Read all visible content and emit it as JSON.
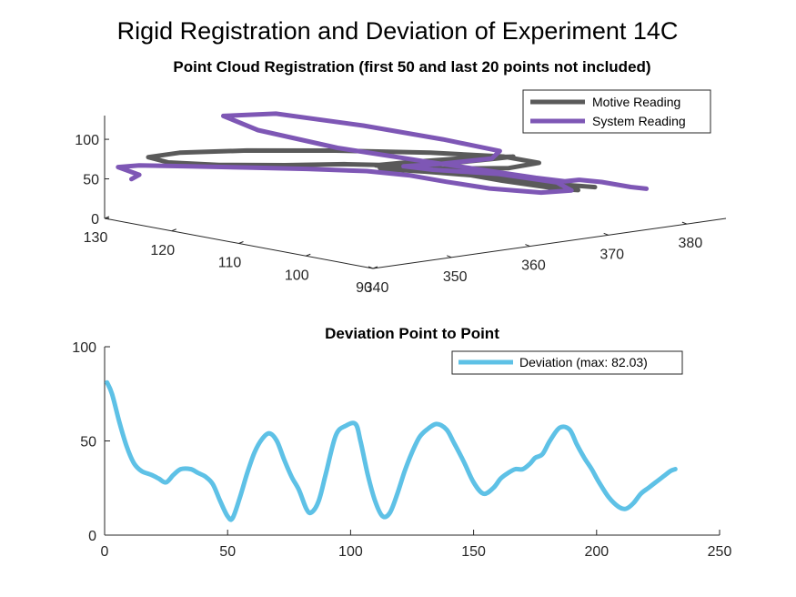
{
  "figure": {
    "title": "Rigid Registration and Deviation of Experiment 14C"
  },
  "colors": {
    "motive": "#5a5a5a",
    "system": "#7e57b5",
    "deviation": "#5ec1e6",
    "axis": "#262626"
  },
  "chart_data": [
    {
      "type": "line",
      "projection": "3d",
      "title": "Point Cloud Registration (first 50 and last 20 points not included)",
      "legend": [
        "Motive Reading",
        "System Reading"
      ],
      "legend_position": "top-right",
      "axes": {
        "x": {
          "lim": [
            340,
            385
          ],
          "ticks": [
            340,
            350,
            360,
            370,
            380
          ],
          "tick_labels": [
            "340",
            "350",
            "360",
            "370",
            "380"
          ]
        },
        "y": {
          "lim": [
            90,
            130
          ],
          "ticks": [
            90,
            100,
            110,
            120,
            130
          ],
          "tick_labels": [
            "90",
            "100",
            "110",
            "120",
            "130"
          ]
        },
        "z": {
          "lim": [
            0,
            130
          ],
          "ticks": [
            0,
            50,
            100
          ],
          "tick_labels": [
            "0",
            "50",
            "100"
          ]
        }
      },
      "series": [
        {
          "name": "Motive Reading",
          "color": "#5a5a5a",
          "points": [
            [
              373,
              98,
              40
            ],
            [
              369,
              96,
              50
            ],
            [
              365,
              100,
              60
            ],
            [
              363,
              104,
              66
            ],
            [
              360,
              109,
              72
            ],
            [
              356,
              113,
              73
            ],
            [
              351,
              116,
              74
            ],
            [
              346,
              120,
              75
            ],
            [
              343,
              124,
              76
            ],
            [
              343,
              127,
              78
            ],
            [
              347,
              127,
              78
            ],
            [
              353,
              124,
              77
            ],
            [
              360,
              119,
              75
            ],
            [
              367,
              113,
              72
            ],
            [
              372,
              108,
              68
            ],
            [
              374,
              105,
              62
            ],
            [
              371,
              106,
              58
            ],
            [
              366,
              110,
              58
            ],
            [
              362,
              113,
              60
            ],
            [
              360,
              113,
              66
            ],
            [
              362,
              110,
              72
            ],
            [
              366,
              106,
              78
            ],
            [
              369,
              103,
              80
            ],
            [
              367,
              104,
              78
            ],
            [
              362,
              107,
              73
            ],
            [
              358,
              110,
              70
            ],
            [
              359,
              111,
              66
            ],
            [
              363,
              109,
              60
            ],
            [
              367,
              106,
              54
            ],
            [
              371,
              102,
              46
            ],
            [
              376,
              99,
              38
            ]
          ]
        },
        {
          "name": "System Reading",
          "color": "#7e57b5",
          "points": [
            [
              380,
              96,
              35
            ],
            [
              378,
              96,
              40
            ],
            [
              376,
              98,
              46
            ],
            [
              374,
              99,
              50
            ],
            [
              373,
              100,
              48
            ],
            [
              371,
              102,
              52
            ],
            [
              368,
              104,
              60
            ],
            [
              362,
              108,
              76
            ],
            [
              356,
              114,
              92
            ],
            [
              351,
              120,
              112
            ],
            [
              350,
              124,
              125
            ],
            [
              355,
              122,
              124
            ],
            [
              361,
              116,
              110
            ],
            [
              366,
              110,
              95
            ],
            [
              369,
              105,
              84
            ],
            [
              368,
              105,
              76
            ],
            [
              364,
              108,
              70
            ],
            [
              361,
              110,
              68
            ],
            [
              363,
              108,
              64
            ],
            [
              368,
              104,
              58
            ],
            [
              372,
              100,
              48
            ],
            [
              373,
              99,
              38
            ],
            [
              370,
              100,
              38
            ],
            [
              366,
              103,
              44
            ],
            [
              363,
              106,
              52
            ],
            [
              361,
              109,
              58
            ],
            [
              358,
              112,
              63
            ],
            [
              353,
              115,
              68
            ],
            [
              348,
              118,
              72
            ],
            [
              344,
              122,
              73
            ],
            [
              341,
              126,
              72
            ],
            [
              340,
              128,
              68
            ],
            [
              341,
              126,
              60
            ],
            [
              340,
              126,
              56
            ]
          ]
        }
      ]
    },
    {
      "type": "line",
      "title": "Deviation Point to Point",
      "legend": [
        "Deviation (max: 82.03)"
      ],
      "legend_position": "top-right",
      "xlim": [
        0,
        250
      ],
      "ylim": [
        0,
        100
      ],
      "x_ticks": [
        "0",
        "50",
        "100",
        "150",
        "200",
        "250"
      ],
      "y_ticks": [
        "0",
        "50",
        "100"
      ],
      "series": [
        {
          "name": "Deviation (max: 82.03)",
          "color": "#5ec1e6",
          "x": [
            1,
            3,
            6,
            9,
            12,
            15,
            19,
            22,
            25,
            28,
            31,
            35,
            38,
            41,
            44,
            47,
            50,
            52,
            55,
            58,
            61,
            64,
            67,
            70,
            73,
            76,
            79,
            82,
            84,
            87,
            90,
            94,
            98,
            102,
            104,
            107,
            110,
            113,
            116,
            119,
            122,
            125,
            128,
            131,
            135,
            139,
            142,
            146,
            150,
            154,
            158,
            161,
            164,
            167,
            170,
            173,
            175,
            178,
            181,
            185,
            189,
            192,
            195,
            198,
            201,
            205,
            209,
            212,
            215,
            218,
            221,
            224,
            227,
            230,
            232
          ],
          "y": [
            81,
            75,
            60,
            47,
            38,
            34,
            32,
            30,
            28,
            32,
            35,
            35,
            33,
            31,
            27,
            18,
            10,
            9,
            20,
            33,
            44,
            51,
            54,
            50,
            40,
            31,
            24,
            14,
            12,
            18,
            33,
            53,
            58,
            59,
            50,
            32,
            18,
            10,
            12,
            22,
            34,
            44,
            52,
            56,
            59,
            56,
            49,
            39,
            28,
            22,
            25,
            30,
            33,
            35,
            35,
            38,
            41,
            43,
            50,
            57,
            56,
            48,
            41,
            35,
            28,
            20,
            15,
            14,
            17,
            22,
            25,
            28,
            31,
            34,
            35
          ]
        }
      ]
    }
  ]
}
